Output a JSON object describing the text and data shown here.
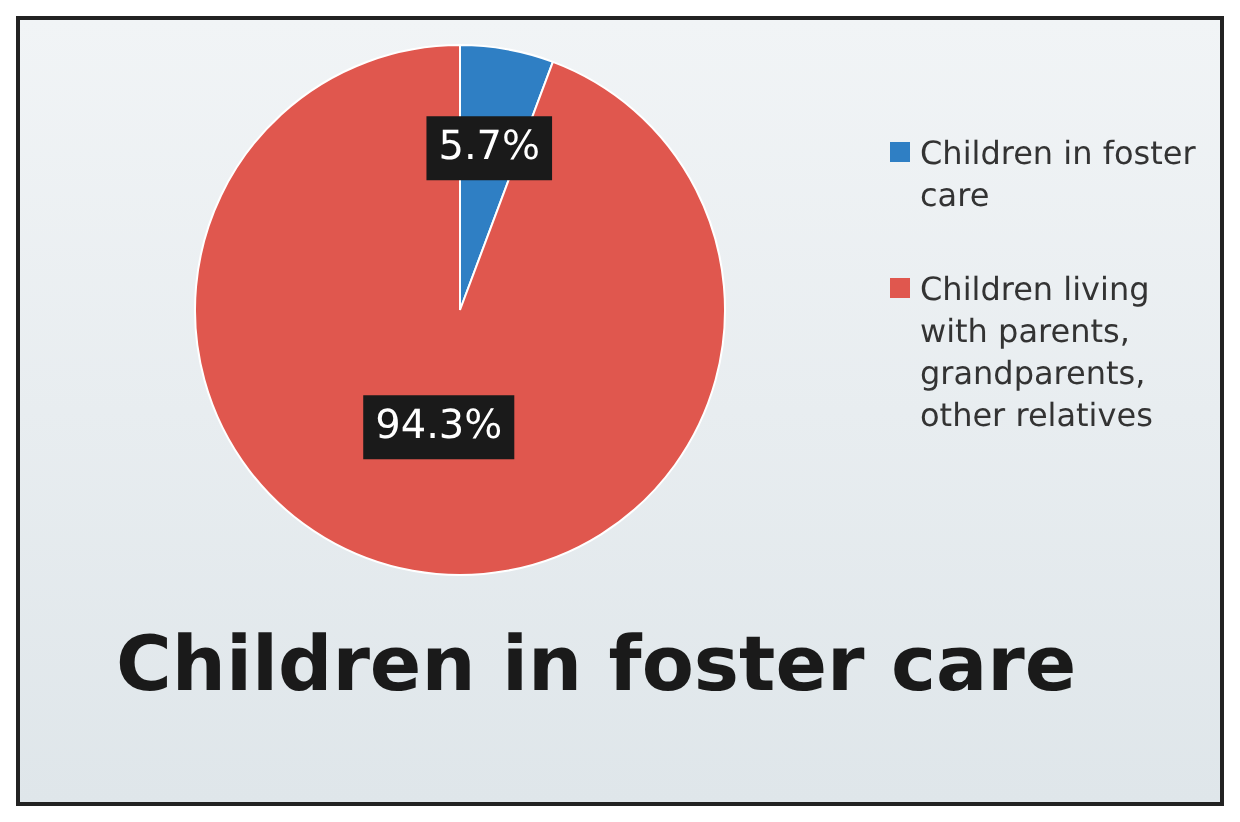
{
  "chart_data": {
    "type": "pie",
    "title": "Children in foster care",
    "categories": [
      "Children in foster care",
      "Children living with parents, grandparents, other relatives"
    ],
    "values": [
      5.7,
      94.3
    ],
    "colors": [
      "#2f7fc4",
      "#e0574e"
    ],
    "value_labels": [
      "5.7%",
      "94.3%"
    ],
    "legend": "right"
  }
}
